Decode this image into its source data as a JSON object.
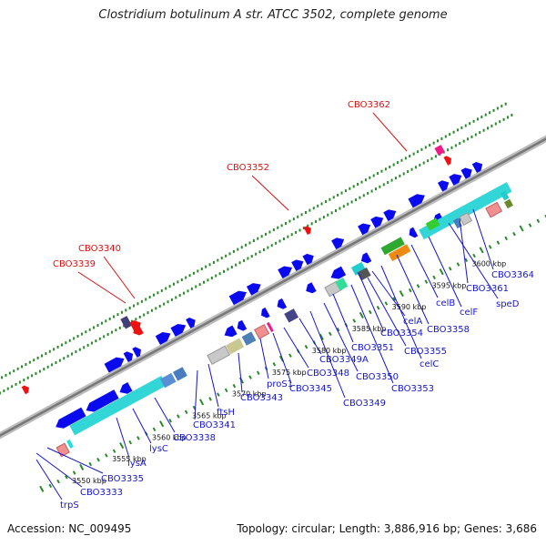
{
  "title": "Clostridium botulinum A str. ATCC 3502, complete genome",
  "footer": {
    "accession": "Accession: NC_009495",
    "summary": "Topology: circular; Length: 3,886,916 bp; Genes: 3,686"
  },
  "ruler": [
    "3550 kbp",
    "3555 kbp",
    "3560 kbp",
    "3565 kbp",
    "3570 kbp",
    "3575 kbp",
    "3580 kbp",
    "3585 kbp",
    "3590 kbp",
    "3595 kbp",
    "3600 kbp"
  ],
  "red_labels": [
    "CBO3362",
    "CBO3352",
    "CBO3340",
    "CBO3339"
  ],
  "blue_labels": [
    "trpS",
    "CBO3333",
    "CBO3335",
    "lysA",
    "lysC",
    "CBO3338",
    "CBO3341",
    "ftsH",
    "CBO3343",
    "proS1",
    "CBO3345",
    "CBO3348",
    "CBO3349",
    "CBO3349A",
    "CBO3350",
    "CBO3351",
    "CBO3353",
    "CBO3354",
    "CBO3355",
    "celA",
    "celC",
    "CBO3358",
    "celB",
    "celF",
    "speD",
    "CBO3361",
    "CBO3364"
  ],
  "colors": {
    "gene": "#0a0aee",
    "rrna": "#33d6d6",
    "trna": "#ee1a8a",
    "pseudo": "#f09090",
    "label_red": "#d41414",
    "label_blue": "#1616c8",
    "tick": "#2a8a2a",
    "backbone": "#8a8a8a"
  }
}
